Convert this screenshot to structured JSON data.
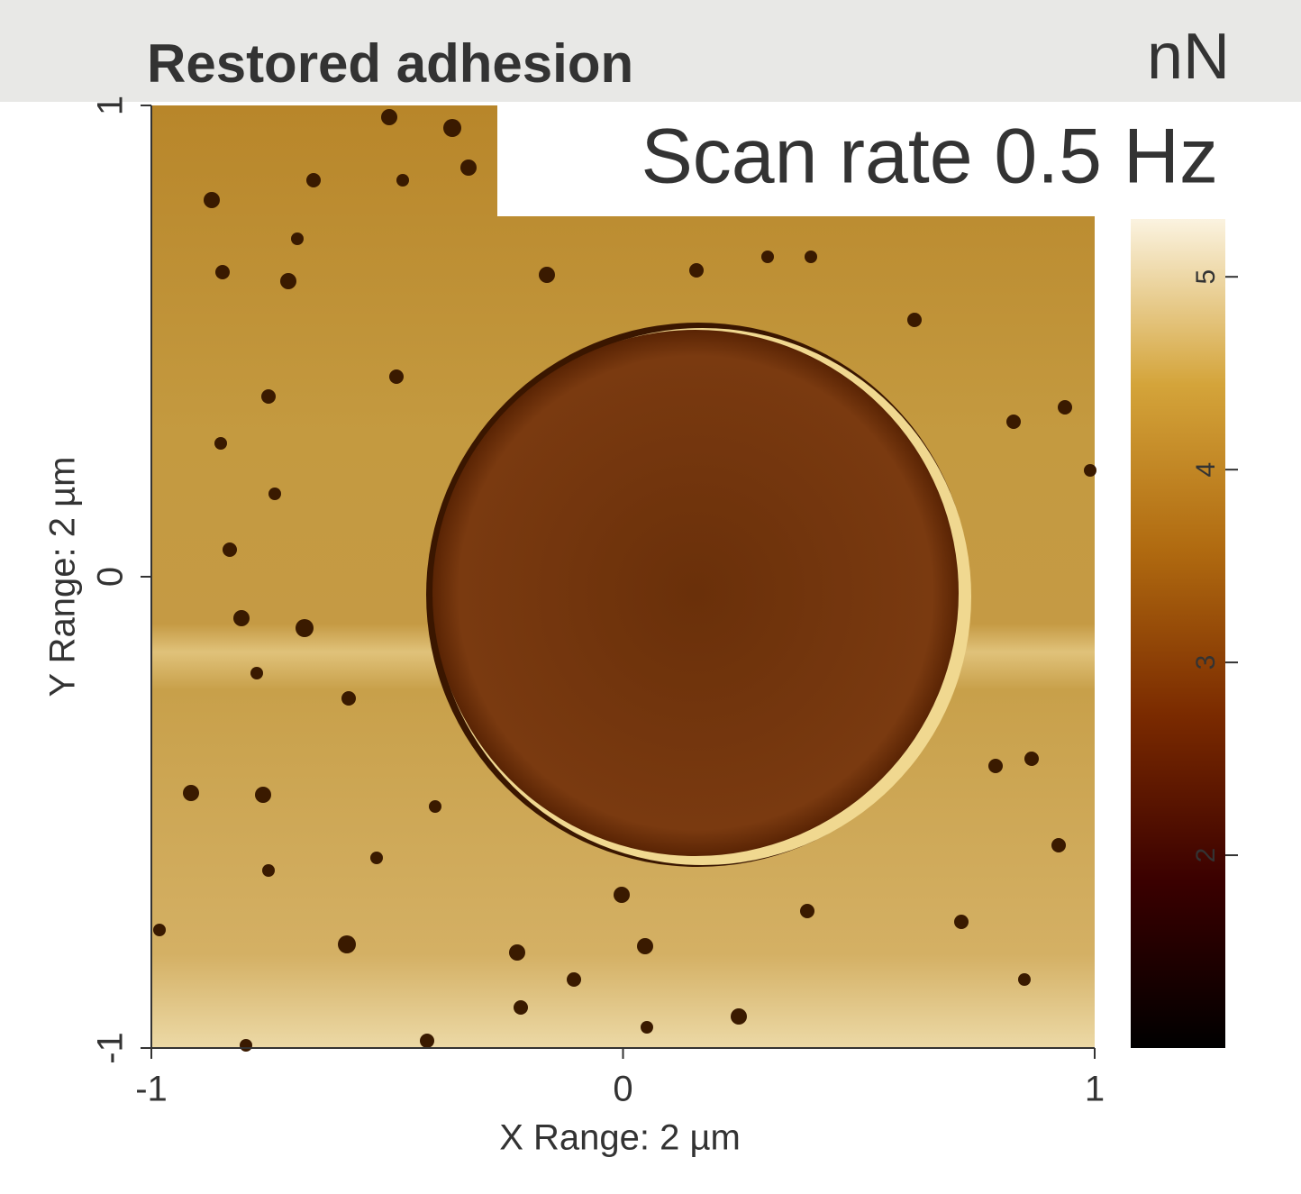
{
  "chart_data": {
    "type": "image",
    "title": "Restored adhesion",
    "unit": "nN",
    "annotation": "Scan rate 0.5 Hz",
    "xlabel": "X Range: 2 µm",
    "ylabel": "Y Range: 2 µm",
    "xlim": [
      -1,
      1
    ],
    "xticks": [
      -1,
      0,
      1
    ],
    "ylim": [
      -1,
      1
    ],
    "yticks": [
      -1,
      0,
      1
    ],
    "colorbar": {
      "lim": [
        1.0,
        5.3
      ],
      "ticks": [
        2,
        3,
        4,
        5
      ],
      "colors": [
        "#000000",
        "#3a0000",
        "#7a2a00",
        "#b06a10",
        "#d4a43a",
        "#fbf3e0"
      ]
    }
  }
}
